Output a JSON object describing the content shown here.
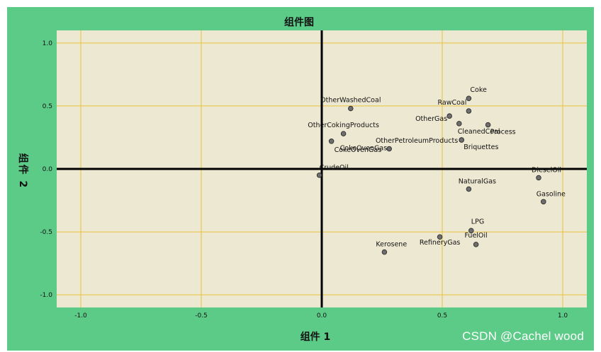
{
  "chart_data": {
    "type": "scatter",
    "title": "组件图",
    "xlabel": "组件 1",
    "ylabel": "组件 2",
    "xlim": [
      -1.1,
      1.1
    ],
    "ylim": [
      -1.1,
      1.1
    ],
    "xticks": [
      -1.0,
      -0.5,
      0.0,
      0.5,
      1.0
    ],
    "yticks": [
      -1.0,
      -0.5,
      0.0,
      0.5,
      1.0
    ],
    "xtick_labels": [
      "-1.0",
      "-0.5",
      "0.0",
      "0.5",
      "1.0"
    ],
    "ytick_labels": [
      "-1.0",
      "-0.5",
      "0.0",
      "0.5",
      "1.0"
    ],
    "grid": true,
    "colors": {
      "frame": "#5ccb88",
      "plot_bg": "#ede8d2",
      "grid": "#e8c23a",
      "marker": "#6e6e6e"
    },
    "points": [
      {
        "label": "Coke",
        "x": 0.61,
        "y": 0.56
      },
      {
        "label": "RawCoal",
        "x": 0.61,
        "y": 0.46
      },
      {
        "label": "OtherWashedCoal",
        "x": 0.12,
        "y": 0.48
      },
      {
        "label": "OtherGas",
        "x": 0.53,
        "y": 0.42
      },
      {
        "label": "CleanedCoal",
        "x": 0.57,
        "y": 0.36
      },
      {
        "label": "Process",
        "x": 0.69,
        "y": 0.35
      },
      {
        "label": "OtherCokingProducts",
        "x": 0.09,
        "y": 0.28
      },
      {
        "label": "OtherPetroleumProducts",
        "x": 0.58,
        "y": 0.23
      },
      {
        "label": "Briquettes",
        "x": 0.58,
        "y": 0.23
      },
      {
        "label": "CokeOvenGas",
        "x": 0.04,
        "y": 0.22
      },
      {
        "label": "CokeOvenGas",
        "x": 0.28,
        "y": 0.16
      },
      {
        "label": "CrudeOil",
        "x": -0.01,
        "y": -0.05
      },
      {
        "label": "DieselOil",
        "x": 0.9,
        "y": -0.07
      },
      {
        "label": "NaturalGas",
        "x": 0.61,
        "y": -0.16
      },
      {
        "label": "Gasoline",
        "x": 0.92,
        "y": -0.26
      },
      {
        "label": "LPG",
        "x": 0.62,
        "y": -0.49
      },
      {
        "label": "RefineryGas",
        "x": 0.49,
        "y": -0.54
      },
      {
        "label": "FuelOil",
        "x": 0.64,
        "y": -0.6
      },
      {
        "label": "Kerosene",
        "x": 0.26,
        "y": -0.66
      }
    ]
  },
  "watermark": "CSDN @Cachel wood"
}
